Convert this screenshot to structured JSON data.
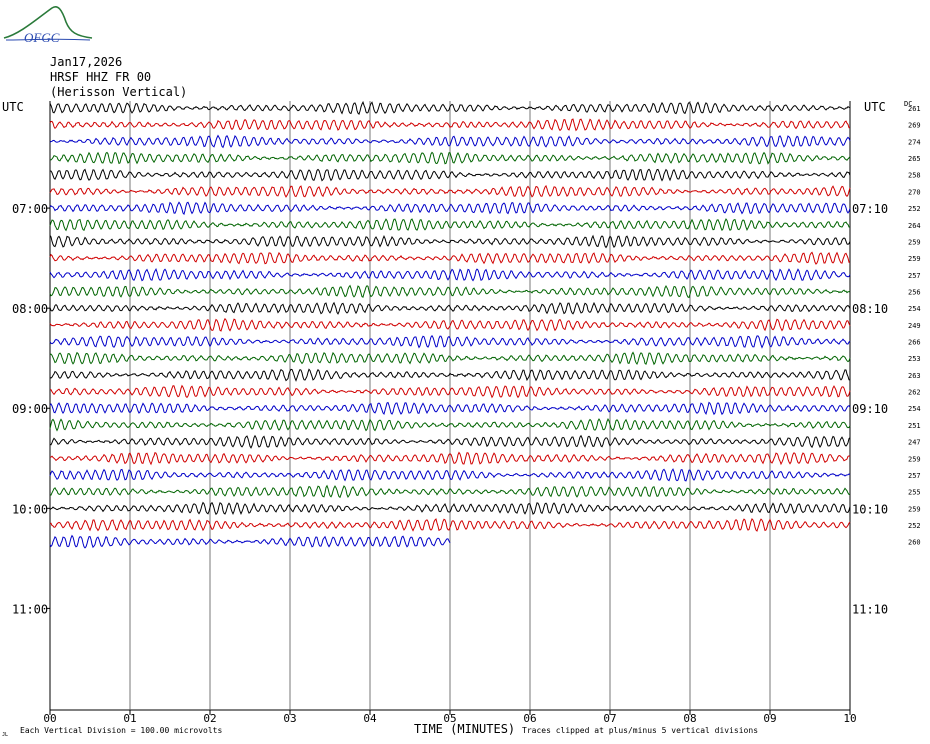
{
  "header": {
    "logo_text": "OFGC",
    "date": "Jan17,2026",
    "station": "HRSF HHZ FR 00",
    "location": "(Herisson Vertical)"
  },
  "axis": {
    "left_title": "UTC",
    "right_title": "UTC",
    "dc_title": "DC",
    "xlabel": "TIME (MINUTES)",
    "xticks": [
      "00",
      "01",
      "02",
      "03",
      "04",
      "05",
      "06",
      "07",
      "08",
      "09",
      "10"
    ]
  },
  "footer": {
    "note_left": "Each Vertical Division =  100.00 microvolts",
    "note_right": "Traces clipped at plus/minus 5 vertical divisions",
    "corner_mark": "JL"
  },
  "colors": {
    "line_colors": [
      "#000000",
      "#d00000",
      "#0000c8",
      "#006400"
    ],
    "grid": "#000000",
    "background": "#ffffff"
  },
  "chart_data": {
    "type": "line",
    "title": "HRSF HHZ FR 00",
    "xlabel": "TIME (MINUTES)",
    "xlim": [
      0,
      10
    ],
    "rows_per_hour": 6,
    "left_hour_labels": [
      "07:00",
      "08:00",
      "09:00",
      "10:00",
      "11:00"
    ],
    "right_hour_labels": [
      "07:10",
      "08:10",
      "09:10",
      "10:10",
      "11:10"
    ],
    "dc_values": [
      261,
      269,
      274,
      265,
      258,
      270,
      252,
      264,
      259,
      259,
      257,
      256,
      254,
      249,
      266,
      253,
      263,
      262,
      254,
      251,
      247,
      259,
      257,
      255,
      259,
      252,
      260
    ],
    "last_trace_end_minutes": 5.0,
    "trace_style": "continuous seismic noise ~ 1.7 Hz visual, clipped at +/-5 divisions"
  }
}
